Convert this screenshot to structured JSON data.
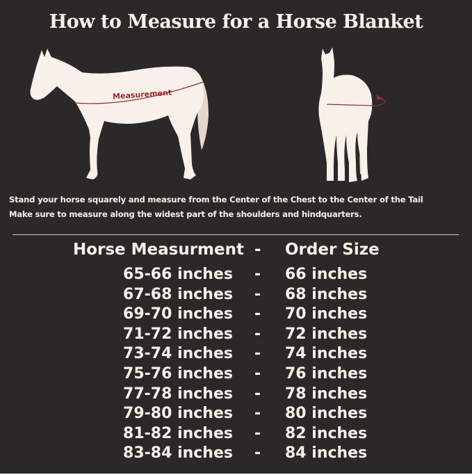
{
  "title": "How to Measure for a Horse Blanket",
  "diagram": {
    "measurement_label": "Measurement",
    "horse_color": "#f7f1ea",
    "tail_color": "#e3d7cb",
    "measure_line_color": "#9b2a2e"
  },
  "instructions": [
    "Stand your horse squarely and measure from the Center of the Chest to the Center of the Tail",
    "Make sure to measure along the widest part of the shoulders and hindquarters."
  ],
  "table": {
    "headers": {
      "measurement": "Horse Measurment",
      "separator": "-",
      "size": "Order Size"
    },
    "rows": [
      {
        "measurement": "65-66 inches",
        "separator": "-",
        "size": "66 inches"
      },
      {
        "measurement": "67-68 inches",
        "separator": "-",
        "size": "68 inches"
      },
      {
        "measurement": "69-70 inches",
        "separator": "-",
        "size": "70 inches"
      },
      {
        "measurement": "71-72 inches",
        "separator": "-",
        "size": "72 inches"
      },
      {
        "measurement": "73-74 inches",
        "separator": "-",
        "size": "74 inches"
      },
      {
        "measurement": "75-76 inches",
        "separator": "-",
        "size": "76 inches"
      },
      {
        "measurement": "77-78 inches",
        "separator": "-",
        "size": "78 inches"
      },
      {
        "measurement": "79-80 inches",
        "separator": "-",
        "size": "80 inches"
      },
      {
        "measurement": "81-82 inches",
        "separator": "-",
        "size": "82 inches"
      },
      {
        "measurement": "83-84 inches",
        "separator": "-",
        "size": "84 inches"
      }
    ]
  }
}
